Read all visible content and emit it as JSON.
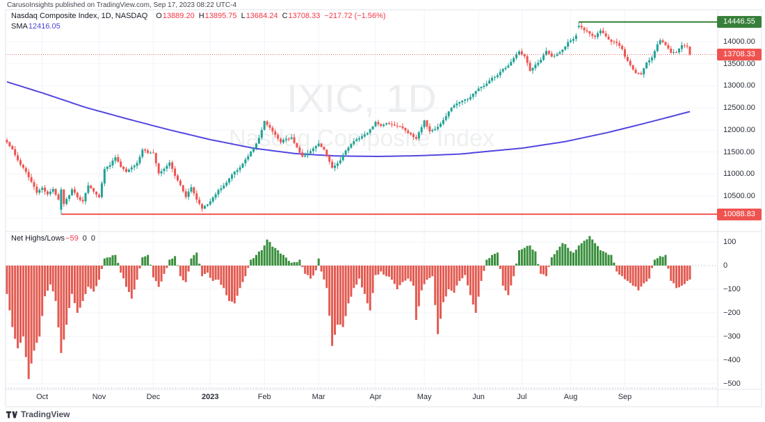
{
  "attribution": "CarusoInsights published on TradingView.com, Sep 17, 2023 08:22 UTC-4",
  "legend": {
    "title": "Nasdaq Composite Index, 1D, NASDAQ",
    "o_label": "O",
    "o_value": "13889.20",
    "h_label": "H",
    "h_value": "13895.75",
    "l_label": "L",
    "l_value": "13684.24",
    "c_label": "C",
    "c_value": "13708.33",
    "change": "−217.72 (−1.56%)",
    "sma_label": "SMA",
    "sma_value": "12416.05"
  },
  "indicator": {
    "label": "Net Highs/Lows",
    "last_value": "−59",
    "extra_values": [
      "0",
      "0"
    ]
  },
  "watermark": {
    "line1": "IXIC, 1D",
    "line2": "Nasdaq Composite Index"
  },
  "footer": {
    "brand": "TradingView"
  },
  "colors": {
    "candle_up": "#21a195",
    "candle_down": "#ef5350",
    "bar_up": "#388e3c",
    "bar_down": "#e25a50",
    "sma": "#5246e0",
    "level_high": "#2e7d32",
    "level_low": "#ef5350",
    "current_dotted": "#ef5350",
    "badge_high_bg": "#37803b",
    "badge_current_bg": "#ef5350",
    "badge_low_bg": "#ef5350",
    "grid": "#f0f3fa",
    "border": "#e0e3eb",
    "axis_text": "#2a2e39"
  },
  "price_axis": {
    "badges": [
      {
        "text": "14446.55",
        "value": 14446.55,
        "bg": "#37803b"
      },
      {
        "text": "13708.33",
        "value": 13708.33,
        "bg": "#ef5350"
      },
      {
        "text": "10088.83",
        "value": 10088.83,
        "bg": "#ef5350"
      }
    ]
  },
  "time_axis": {
    "months": [
      {
        "label": "Oct",
        "day": 13
      },
      {
        "label": "Nov",
        "day": 34
      },
      {
        "label": "Dec",
        "day": 54
      },
      {
        "label": "2023",
        "day": 75,
        "bold": true
      },
      {
        "label": "Feb",
        "day": 95
      },
      {
        "label": "Mar",
        "day": 115
      },
      {
        "label": "Apr",
        "day": 136
      },
      {
        "label": "May",
        "day": 154
      },
      {
        "label": "Jun",
        "day": 174
      },
      {
        "label": "Jul",
        "day": 190
      },
      {
        "label": "Aug",
        "day": 208
      },
      {
        "label": "Sep",
        "day": 228
      }
    ]
  },
  "chart_data": [
    {
      "type": "candlestick",
      "title": "Nasdaq Composite Index, 1D, NASDAQ",
      "timeframe": "1D",
      "x_range": [
        "Sep 2022",
        "Sep 2023"
      ],
      "ylim": [
        9740,
        14730
      ],
      "yticks": [
        14000,
        13500,
        13000,
        12500,
        12000,
        11500,
        11000,
        10500,
        10000
      ],
      "grid": true,
      "last_bar": {
        "open": 13889.2,
        "high": 13895.75,
        "low": 13684.24,
        "close": 13708.33,
        "change": -217.72,
        "change_pct": -1.56
      },
      "levels": {
        "swing_high": 14446.55,
        "swing_low": 10088.83,
        "current": 13708.33
      },
      "sma": {
        "label": "SMA",
        "last": 12416.05,
        "points": [
          [
            0,
            13090
          ],
          [
            14,
            12820
          ],
          [
            29,
            12510
          ],
          [
            45,
            12240
          ],
          [
            60,
            12000
          ],
          [
            75,
            11780
          ],
          [
            91,
            11585
          ],
          [
            106,
            11465
          ],
          [
            121,
            11410
          ],
          [
            137,
            11398
          ],
          [
            152,
            11415
          ],
          [
            168,
            11455
          ],
          [
            175,
            11500
          ],
          [
            190,
            11585
          ],
          [
            206,
            11735
          ],
          [
            222,
            11945
          ],
          [
            237,
            12175
          ],
          [
            252,
            12416
          ]
        ]
      },
      "close_anchors": [
        [
          0,
          11720
        ],
        [
          2,
          11560
        ],
        [
          4,
          11310
        ],
        [
          7,
          11050
        ],
        [
          9,
          10820
        ],
        [
          11,
          10575
        ],
        [
          13,
          10690
        ],
        [
          15,
          10540
        ],
        [
          17,
          10660
        ],
        [
          19,
          10420
        ],
        [
          20,
          10649
        ],
        [
          21,
          10321
        ],
        [
          23,
          10520
        ],
        [
          24,
          10650
        ],
        [
          26,
          10470
        ],
        [
          28,
          10380
        ],
        [
          30,
          10740
        ],
        [
          32,
          10600
        ],
        [
          34,
          10475
        ],
        [
          36,
          11114
        ],
        [
          38,
          11200
        ],
        [
          40,
          11380
        ],
        [
          42,
          11160
        ],
        [
          44,
          11050
        ],
        [
          46,
          11150
        ],
        [
          48,
          11250
        ],
        [
          50,
          11550
        ],
        [
          52,
          11480
        ],
        [
          54,
          11480
        ],
        [
          56,
          11015
        ],
        [
          58,
          11120
        ],
        [
          60,
          11260
        ],
        [
          62,
          10960
        ],
        [
          64,
          10750
        ],
        [
          66,
          10476
        ],
        [
          68,
          10700
        ],
        [
          70,
          10420
        ],
        [
          72,
          10213
        ],
        [
          74,
          10310
        ],
        [
          76,
          10470
        ],
        [
          78,
          10635
        ],
        [
          80,
          10740
        ],
        [
          82,
          10900
        ],
        [
          84,
          11050
        ],
        [
          86,
          11150
        ],
        [
          88,
          11330
        ],
        [
          90,
          11510
        ],
        [
          92,
          11690
        ],
        [
          93,
          11820
        ],
        [
          95,
          12200
        ],
        [
          97,
          12050
        ],
        [
          99,
          11890
        ],
        [
          101,
          11720
        ],
        [
          103,
          11800
        ],
        [
          105,
          11830
        ],
        [
          107,
          11600
        ],
        [
          109,
          11395
        ],
        [
          111,
          11470
        ],
        [
          113,
          11580
        ],
        [
          115,
          11690
        ],
        [
          117,
          11550
        ],
        [
          119,
          11280
        ],
        [
          120,
          11139
        ],
        [
          121,
          11190
        ],
        [
          123,
          11310
        ],
        [
          125,
          11530
        ],
        [
          127,
          11680
        ],
        [
          129,
          11787
        ],
        [
          131,
          11855
        ],
        [
          133,
          11930
        ],
        [
          135,
          12080
        ],
        [
          136,
          12180
        ],
        [
          138,
          12090
        ],
        [
          140,
          12150
        ],
        [
          142,
          12120
        ],
        [
          144,
          12090
        ],
        [
          146,
          12040
        ],
        [
          148,
          11930
        ],
        [
          150,
          11840
        ],
        [
          151,
          11799
        ],
        [
          153,
          12060
        ],
        [
          154,
          12215
        ],
        [
          156,
          11966
        ],
        [
          158,
          12020
        ],
        [
          160,
          12140
        ],
        [
          162,
          12310
        ],
        [
          164,
          12500
        ],
        [
          166,
          12600
        ],
        [
          168,
          12660
        ],
        [
          170,
          12700
        ],
        [
          172,
          12820
        ],
        [
          174,
          12940
        ],
        [
          175,
          12975
        ],
        [
          177,
          13050
        ],
        [
          179,
          13180
        ],
        [
          181,
          13240
        ],
        [
          183,
          13380
        ],
        [
          185,
          13460
        ],
        [
          187,
          13630
        ],
        [
          189,
          13780
        ],
        [
          191,
          13670
        ],
        [
          193,
          13340
        ],
        [
          195,
          13480
        ],
        [
          197,
          13590
        ],
        [
          199,
          13790
        ],
        [
          201,
          13660
        ],
        [
          203,
          13720
        ],
        [
          205,
          13820
        ],
        [
          207,
          13990
        ],
        [
          209,
          14060
        ],
        [
          210,
          14140
        ],
        [
          211,
          14358
        ],
        [
          213,
          14260
        ],
        [
          215,
          14180
        ],
        [
          217,
          14110
        ],
        [
          219,
          14250
        ],
        [
          221,
          14120
        ],
        [
          223,
          14000
        ],
        [
          225,
          13970
        ],
        [
          227,
          13830
        ],
        [
          228,
          13660
        ],
        [
          230,
          13470
        ],
        [
          232,
          13291
        ],
        [
          234,
          13260
        ],
        [
          236,
          13530
        ],
        [
          238,
          13640
        ],
        [
          240,
          13940
        ],
        [
          241,
          14031
        ],
        [
          243,
          13920
        ],
        [
          245,
          13750
        ],
        [
          247,
          13761
        ],
        [
          249,
          13920
        ],
        [
          251,
          13890
        ],
        [
          252,
          13708.33
        ]
      ],
      "forced_bars": [
        {
          "day": 20,
          "open": 10190,
          "high": 10700,
          "low": 10088.83,
          "close": 10649
        },
        {
          "day": 211,
          "open": 14330,
          "high": 14446.55,
          "low": 14290,
          "close": 14358
        },
        {
          "day": 252,
          "open": 13889.2,
          "high": 13895.75,
          "low": 13684.24,
          "close": 13708.33
        }
      ]
    },
    {
      "type": "bar",
      "title": "Net Highs/Lows",
      "last": -59,
      "ylim": [
        -520,
        140
      ],
      "yticks": [
        100,
        0,
        -100,
        -200,
        -300,
        -400,
        -500
      ],
      "anchors": [
        [
          0,
          -120
        ],
        [
          2,
          -260
        ],
        [
          4,
          -350
        ],
        [
          6,
          -300
        ],
        [
          8,
          -480
        ],
        [
          10,
          -360
        ],
        [
          12,
          -300
        ],
        [
          14,
          -130
        ],
        [
          16,
          -80
        ],
        [
          18,
          -150
        ],
        [
          20,
          -370
        ],
        [
          22,
          -250
        ],
        [
          24,
          -120
        ],
        [
          26,
          -200
        ],
        [
          28,
          -150
        ],
        [
          30,
          -90
        ],
        [
          32,
          -110
        ],
        [
          34,
          -60
        ],
        [
          36,
          30
        ],
        [
          38,
          35
        ],
        [
          40,
          45
        ],
        [
          42,
          -30
        ],
        [
          44,
          -90
        ],
        [
          46,
          -140
        ],
        [
          48,
          -60
        ],
        [
          50,
          35
        ],
        [
          52,
          45
        ],
        [
          54,
          -50
        ],
        [
          56,
          -90
        ],
        [
          58,
          -35
        ],
        [
          60,
          25
        ],
        [
          62,
          40
        ],
        [
          64,
          -45
        ],
        [
          66,
          -70
        ],
        [
          68,
          30
        ],
        [
          70,
          55
        ],
        [
          72,
          -45
        ],
        [
          74,
          -30
        ],
        [
          76,
          -65
        ],
        [
          78,
          -60
        ],
        [
          80,
          -95
        ],
        [
          82,
          -150
        ],
        [
          84,
          -160
        ],
        [
          86,
          -95
        ],
        [
          88,
          -45
        ],
        [
          90,
          25
        ],
        [
          92,
          45
        ],
        [
          94,
          65
        ],
        [
          95,
          85
        ],
        [
          96,
          110
        ],
        [
          98,
          80
        ],
        [
          100,
          65
        ],
        [
          102,
          45
        ],
        [
          104,
          20
        ],
        [
          106,
          15
        ],
        [
          108,
          25
        ],
        [
          110,
          -35
        ],
        [
          112,
          -55
        ],
        [
          114,
          -20
        ],
        [
          115,
          30
        ],
        [
          116,
          -25
        ],
        [
          118,
          -95
        ],
        [
          120,
          -340
        ],
        [
          122,
          -250
        ],
        [
          124,
          -260
        ],
        [
          126,
          -160
        ],
        [
          128,
          -95
        ],
        [
          130,
          -55
        ],
        [
          132,
          -120
        ],
        [
          134,
          -190
        ],
        [
          136,
          -40
        ],
        [
          138,
          -25
        ],
        [
          140,
          -45
        ],
        [
          142,
          -60
        ],
        [
          144,
          -100
        ],
        [
          146,
          -70
        ],
        [
          148,
          -55
        ],
        [
          150,
          -85
        ],
        [
          151,
          -230
        ],
        [
          153,
          -105
        ],
        [
          155,
          -60
        ],
        [
          157,
          -45
        ],
        [
          159,
          -290
        ],
        [
          161,
          -155
        ],
        [
          163,
          -100
        ],
        [
          165,
          -115
        ],
        [
          167,
          -65
        ],
        [
          169,
          -40
        ],
        [
          171,
          -125
        ],
        [
          173,
          -200
        ],
        [
          175,
          -65
        ],
        [
          177,
          25
        ],
        [
          179,
          45
        ],
        [
          181,
          55
        ],
        [
          183,
          -85
        ],
        [
          185,
          -125
        ],
        [
          187,
          -45
        ],
        [
          189,
          65
        ],
        [
          191,
          75
        ],
        [
          193,
          85
        ],
        [
          195,
          60
        ],
        [
          197,
          -35
        ],
        [
          199,
          -45
        ],
        [
          201,
          35
        ],
        [
          203,
          65
        ],
        [
          205,
          95
        ],
        [
          207,
          75
        ],
        [
          209,
          55
        ],
        [
          211,
          85
        ],
        [
          213,
          105
        ],
        [
          215,
          125
        ],
        [
          217,
          95
        ],
        [
          219,
          65
        ],
        [
          221,
          55
        ],
        [
          223,
          45
        ],
        [
          225,
          -25
        ],
        [
          227,
          -45
        ],
        [
          229,
          -65
        ],
        [
          231,
          -85
        ],
        [
          233,
          -105
        ],
        [
          235,
          -75
        ],
        [
          237,
          -55
        ],
        [
          239,
          25
        ],
        [
          241,
          40
        ],
        [
          243,
          45
        ],
        [
          245,
          -65
        ],
        [
          247,
          -95
        ],
        [
          249,
          -85
        ],
        [
          251,
          -65
        ],
        [
          252,
          -59
        ]
      ]
    }
  ]
}
